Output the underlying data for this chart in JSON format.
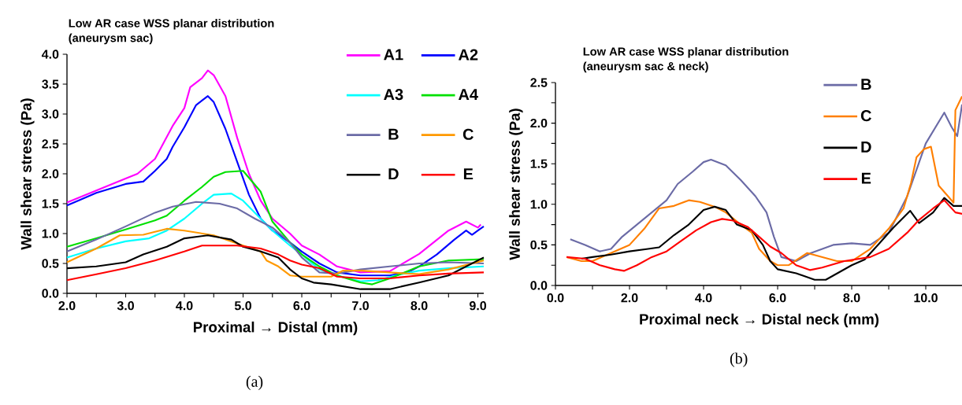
{
  "chart_data": [
    {
      "type": "line",
      "title": "Low AR case WSS planar distribution",
      "subtitle": "(aneurysm sac)",
      "xlabel": "Proximal → Distal (mm)",
      "ylabel": "Wall shear stress (Pa)",
      "annotations": [
        "(a)"
      ],
      "legend": "top right",
      "xlim": [
        2.0,
        9.1
      ],
      "ylim": [
        0,
        4.0
      ],
      "xticks": [
        {
          "value": 2,
          "label": "2.0"
        },
        {
          "value": 2.5,
          "label": null
        },
        {
          "value": 3,
          "label": "3.0"
        },
        {
          "value": 3.5,
          "label": null
        },
        {
          "value": 4,
          "label": "4.0"
        },
        {
          "value": 4.5,
          "label": null
        },
        {
          "value": 5,
          "label": "5.0"
        },
        {
          "value": 5.5,
          "label": null
        },
        {
          "value": 6,
          "label": "6.0"
        },
        {
          "value": 6.5,
          "label": null
        },
        {
          "value": 7,
          "label": "7.0"
        },
        {
          "value": 7.5,
          "label": null
        },
        {
          "value": 8,
          "label": "8.0"
        },
        {
          "value": 8.5,
          "label": null
        },
        {
          "value": 9,
          "label": "9.0"
        }
      ],
      "yticks": [
        {
          "value": 0,
          "label": "0.0"
        },
        0.5,
        {
          "value": 1,
          "label": "1.0"
        },
        1.5,
        {
          "value": 2,
          "label": "2.0"
        },
        2.5,
        {
          "value": 3,
          "label": "3.0"
        },
        3.5,
        {
          "value": 4,
          "label": "4.0"
        }
      ],
      "series": [
        {
          "name": "A1",
          "color": "#ff00ff",
          "x": [
            2.0,
            2.5,
            3.0,
            3.2,
            3.5,
            3.8,
            4.0,
            4.1,
            4.3,
            4.4,
            4.5,
            4.7,
            4.9,
            5.1,
            5.3,
            5.5,
            5.8,
            6.0,
            6.3,
            6.6,
            7.0,
            7.5,
            8.0,
            8.5,
            8.8,
            9.0,
            9.05
          ],
          "values": [
            1.52,
            1.72,
            1.92,
            2.0,
            2.25,
            2.8,
            3.1,
            3.45,
            3.6,
            3.73,
            3.65,
            3.3,
            2.6,
            2.0,
            1.55,
            1.25,
            1.0,
            0.8,
            0.65,
            0.45,
            0.35,
            0.37,
            0.66,
            1.05,
            1.2,
            1.1,
            1.15
          ]
        },
        {
          "name": "A2",
          "color": "#0000ff",
          "x": [
            2.0,
            2.5,
            3.0,
            3.3,
            3.5,
            3.7,
            3.8,
            4.0,
            4.2,
            4.4,
            4.5,
            4.7,
            4.9,
            5.1,
            5.3,
            5.5,
            5.8,
            6.0,
            6.3,
            6.6,
            7.0,
            7.5,
            7.8,
            8.0,
            8.3,
            8.6,
            8.8,
            8.9,
            9.0,
            9.1
          ],
          "values": [
            1.47,
            1.68,
            1.83,
            1.87,
            2.05,
            2.25,
            2.45,
            2.78,
            3.15,
            3.3,
            3.2,
            2.75,
            2.2,
            1.65,
            1.25,
            1.05,
            0.85,
            0.7,
            0.5,
            0.35,
            0.3,
            0.3,
            0.35,
            0.45,
            0.65,
            0.9,
            1.05,
            0.98,
            1.05,
            1.12
          ]
        },
        {
          "name": "A3",
          "color": "#00ffff",
          "x": [
            2.0,
            2.5,
            3.0,
            3.4,
            3.7,
            4.0,
            4.3,
            4.5,
            4.8,
            5.0,
            5.2,
            5.5,
            5.8,
            6.0,
            6.3,
            6.6,
            7.0,
            7.3,
            7.6,
            8.0,
            8.5,
            9.1
          ],
          "values": [
            0.6,
            0.75,
            0.87,
            0.92,
            1.05,
            1.25,
            1.5,
            1.65,
            1.67,
            1.55,
            1.35,
            1.05,
            0.8,
            0.65,
            0.4,
            0.3,
            0.2,
            0.22,
            0.3,
            0.38,
            0.42,
            0.45
          ]
        },
        {
          "name": "A4",
          "color": "#00e000",
          "x": [
            2.0,
            2.5,
            3.0,
            3.5,
            3.7,
            4.0,
            4.3,
            4.5,
            4.7,
            5.0,
            5.3,
            5.5,
            5.8,
            6.0,
            6.3,
            6.6,
            7.0,
            7.2,
            7.5,
            8.0,
            8.5,
            9.1
          ],
          "values": [
            0.78,
            0.92,
            1.07,
            1.22,
            1.3,
            1.55,
            1.78,
            1.95,
            2.03,
            2.05,
            1.7,
            1.2,
            0.85,
            0.65,
            0.45,
            0.3,
            0.18,
            0.15,
            0.25,
            0.45,
            0.55,
            0.57
          ]
        },
        {
          "name": "B",
          "color": "#6b6ba6",
          "x": [
            2.0,
            2.5,
            3.0,
            3.5,
            3.8,
            4.2,
            4.6,
            4.9,
            5.2,
            5.5,
            5.8,
            6.0,
            6.3,
            6.6,
            7.0,
            7.5,
            8.0,
            8.5,
            9.1
          ],
          "values": [
            0.7,
            0.9,
            1.12,
            1.35,
            1.45,
            1.53,
            1.5,
            1.42,
            1.25,
            1.1,
            0.85,
            0.6,
            0.35,
            0.33,
            0.4,
            0.45,
            0.5,
            0.52,
            0.5
          ]
        },
        {
          "name": "C",
          "color": "#ff9900",
          "x": [
            2.0,
            2.5,
            2.9,
            3.3,
            3.7,
            4.0,
            4.5,
            5.0,
            5.3,
            5.4,
            5.6,
            5.8,
            6.0,
            6.5,
            6.7,
            7.0,
            7.5,
            8.0,
            8.5,
            9.1
          ],
          "values": [
            0.52,
            0.75,
            0.97,
            0.98,
            1.08,
            1.05,
            0.97,
            0.8,
            0.7,
            0.55,
            0.45,
            0.3,
            0.28,
            0.28,
            0.38,
            0.38,
            0.35,
            0.32,
            0.4,
            0.55
          ]
        },
        {
          "name": "D",
          "color": "#000000",
          "x": [
            2.0,
            2.5,
            3.0,
            3.3,
            3.7,
            4.0,
            4.4,
            4.8,
            5.0,
            5.3,
            5.6,
            5.8,
            6.0,
            6.2,
            6.5,
            7.0,
            7.5,
            8.0,
            8.5,
            9.1
          ],
          "values": [
            0.42,
            0.45,
            0.52,
            0.65,
            0.78,
            0.92,
            0.97,
            0.9,
            0.78,
            0.7,
            0.6,
            0.4,
            0.25,
            0.18,
            0.15,
            0.07,
            0.07,
            0.18,
            0.3,
            0.6
          ]
        },
        {
          "name": "E",
          "color": "#ff0000",
          "x": [
            2.0,
            2.5,
            3.0,
            3.5,
            4.0,
            4.3,
            4.9,
            5.3,
            5.6,
            5.8,
            6.0,
            6.3,
            6.6,
            7.0,
            7.5,
            8.0,
            8.5,
            9.1
          ],
          "values": [
            0.22,
            0.32,
            0.42,
            0.55,
            0.7,
            0.8,
            0.8,
            0.75,
            0.65,
            0.55,
            0.48,
            0.42,
            0.28,
            0.25,
            0.25,
            0.3,
            0.33,
            0.35
          ]
        }
      ]
    },
    {
      "type": "line",
      "title": "Low AR case WSS planar distribution",
      "subtitle": "(aneurysm sac & neck)",
      "xlabel": "Proximal neck → Distal neck (mm)",
      "ylabel": "Wall shear stress (Pa)",
      "annotations": [
        "(b)"
      ],
      "legend": "top right",
      "xlim": [
        0,
        11
      ],
      "ylim": [
        0,
        2.5
      ],
      "xticks": [
        {
          "value": 0,
          "label": "0.0"
        },
        {
          "value": 1,
          "label": null
        },
        {
          "value": 2,
          "label": "2.0"
        },
        {
          "value": 3,
          "label": null
        },
        {
          "value": 4,
          "label": "4.0"
        },
        {
          "value": 5,
          "label": null
        },
        {
          "value": 6,
          "label": "6.0"
        },
        {
          "value": 7,
          "label": null
        },
        {
          "value": 8,
          "label": "8.0"
        },
        {
          "value": 9,
          "label": null
        },
        {
          "value": 10,
          "label": "10.0"
        }
      ],
      "yticks": [
        {
          "value": 0,
          "label": "0.0"
        },
        {
          "value": 0.25,
          "label": null
        },
        0.5,
        {
          "value": 0.75,
          "label": null
        },
        {
          "value": 1,
          "label": "1.0"
        },
        {
          "value": 1.25,
          "label": null
        },
        1.5,
        {
          "value": 1.75,
          "label": null
        },
        {
          "value": 2,
          "label": "2.0"
        },
        {
          "value": 2.25,
          "label": null
        },
        2.5
      ],
      "series": [
        {
          "name": "B",
          "color": "#6b6ba6",
          "x": [
            0.4,
            0.8,
            1.2,
            1.5,
            1.8,
            2.2,
            2.6,
            3.0,
            3.3,
            3.7,
            4.0,
            4.2,
            4.6,
            5.0,
            5.4,
            5.7,
            5.9,
            6.1,
            6.5,
            6.9,
            7.5,
            8.0,
            8.5,
            9.0,
            9.5,
            10.0,
            10.5,
            10.7,
            10.85,
            10.98
          ],
          "values": [
            0.57,
            0.5,
            0.42,
            0.45,
            0.6,
            0.75,
            0.9,
            1.05,
            1.25,
            1.4,
            1.52,
            1.55,
            1.48,
            1.3,
            1.1,
            0.9,
            0.6,
            0.35,
            0.3,
            0.4,
            0.5,
            0.52,
            0.5,
            0.65,
            1.1,
            1.75,
            2.13,
            1.95,
            1.84,
            2.23
          ]
        },
        {
          "name": "C",
          "color": "#ff7f00",
          "x": [
            0.3,
            0.7,
            1.0,
            1.5,
            2.0,
            2.4,
            2.8,
            3.2,
            3.6,
            3.9,
            4.3,
            4.6,
            5.0,
            5.3,
            5.5,
            5.8,
            6.0,
            6.3,
            6.8,
            7.2,
            7.6,
            8.0,
            8.5,
            9.0,
            9.4,
            9.6,
            9.75,
            9.95,
            10.14,
            10.35,
            10.6,
            10.75,
            10.8,
            10.98
          ],
          "values": [
            0.35,
            0.3,
            0.3,
            0.4,
            0.5,
            0.7,
            0.95,
            0.98,
            1.05,
            1.03,
            0.97,
            0.9,
            0.75,
            0.65,
            0.45,
            0.3,
            0.25,
            0.25,
            0.4,
            0.35,
            0.3,
            0.3,
            0.45,
            0.7,
            0.95,
            1.26,
            1.58,
            1.68,
            1.71,
            1.23,
            1.1,
            1.02,
            2.16,
            2.33
          ]
        },
        {
          "name": "D",
          "color": "#000000",
          "x": [
            0.7,
            1.0,
            1.5,
            2.0,
            2.5,
            2.8,
            3.2,
            3.6,
            4.0,
            4.3,
            4.6,
            4.9,
            5.3,
            5.6,
            5.8,
            6.0,
            6.5,
            7.0,
            7.3,
            7.65,
            8.0,
            8.35,
            8.77,
            9.12,
            9.58,
            9.82,
            10.2,
            10.5,
            10.75,
            11.0
          ],
          "values": [
            0.33,
            0.35,
            0.38,
            0.42,
            0.45,
            0.47,
            0.62,
            0.75,
            0.93,
            0.97,
            0.93,
            0.75,
            0.68,
            0.5,
            0.3,
            0.2,
            0.15,
            0.07,
            0.07,
            0.16,
            0.25,
            0.32,
            0.53,
            0.71,
            0.92,
            0.77,
            0.9,
            1.08,
            0.98,
            0.98
          ]
        },
        {
          "name": "E",
          "color": "#ff0000",
          "x": [
            0.3,
            0.8,
            1.2,
            1.6,
            1.85,
            2.2,
            2.6,
            3.0,
            3.4,
            3.8,
            4.2,
            4.5,
            4.8,
            5.2,
            5.5,
            5.8,
            6.1,
            6.5,
            6.88,
            7.2,
            7.8,
            8.5,
            9.0,
            9.5,
            9.8,
            10.2,
            10.5,
            10.8,
            11.0
          ],
          "values": [
            0.35,
            0.33,
            0.25,
            0.2,
            0.18,
            0.25,
            0.35,
            0.42,
            0.55,
            0.68,
            0.78,
            0.82,
            0.8,
            0.72,
            0.6,
            0.48,
            0.4,
            0.25,
            0.19,
            0.22,
            0.3,
            0.35,
            0.45,
            0.65,
            0.8,
            0.95,
            1.05,
            0.9,
            0.88
          ]
        }
      ]
    }
  ]
}
